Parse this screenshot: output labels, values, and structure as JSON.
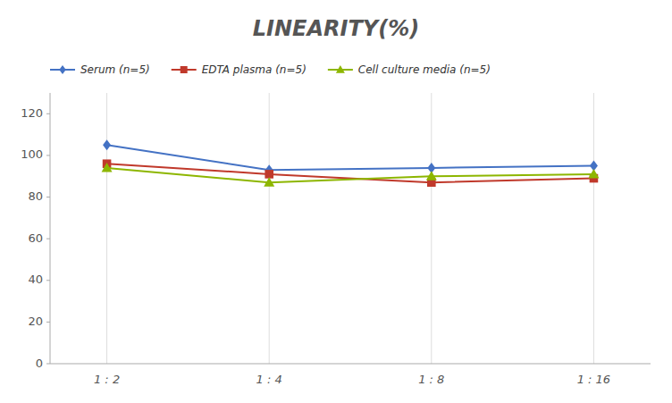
{
  "chart_data": {
    "type": "line",
    "title": "LINEARITY(%)",
    "categories": [
      "1 : 2",
      "1 : 4",
      "1 : 8",
      "1 : 16"
    ],
    "series": [
      {
        "name": "Serum (n=5)",
        "color": "#4472C4",
        "marker": "diamond",
        "values": [
          105,
          93,
          94,
          95
        ]
      },
      {
        "name": "EDTA plasma (n=5)",
        "color": "#C0392B",
        "marker": "square",
        "values": [
          96,
          91,
          87,
          89
        ]
      },
      {
        "name": "Cell culture media (n=5)",
        "color": "#8DB600",
        "marker": "triangle",
        "values": [
          94,
          87,
          90,
          91
        ]
      }
    ],
    "ylim": [
      0,
      130
    ],
    "yticks": [
      0,
      20,
      40,
      60,
      80,
      100,
      120
    ],
    "grid": true,
    "legend": "top-left"
  }
}
